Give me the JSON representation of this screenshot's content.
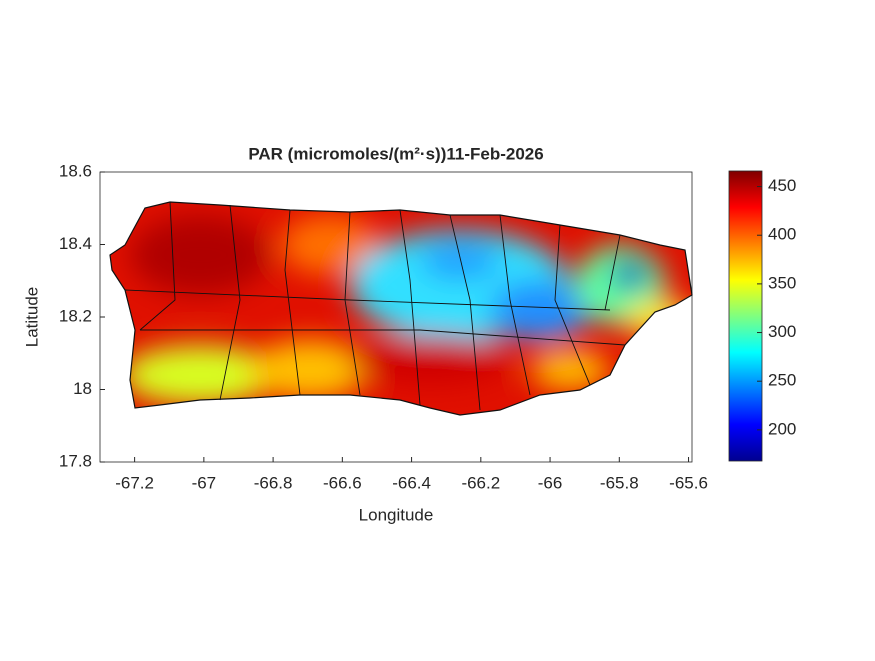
{
  "chart_data": {
    "type": "map",
    "title": "PAR (micromoles/(m²·s))11-Feb-2026",
    "x_label": "Longitude",
    "y_label": "Latitude",
    "xlim": [
      -67.3,
      -65.59
    ],
    "xticks": [
      -67.2,
      -67,
      -66.8,
      -66.6,
      -66.4,
      -66.2,
      -66,
      -65.8,
      -65.6
    ],
    "ylim": [
      17.8,
      18.6
    ],
    "yticks": [
      17.8,
      18,
      18.2,
      18.4,
      18.6
    ],
    "colorbar": {
      "lim": [
        168,
        466
      ],
      "ticks": [
        200,
        250,
        300,
        350,
        400,
        450
      ],
      "colormap": "jet"
    }
  }
}
